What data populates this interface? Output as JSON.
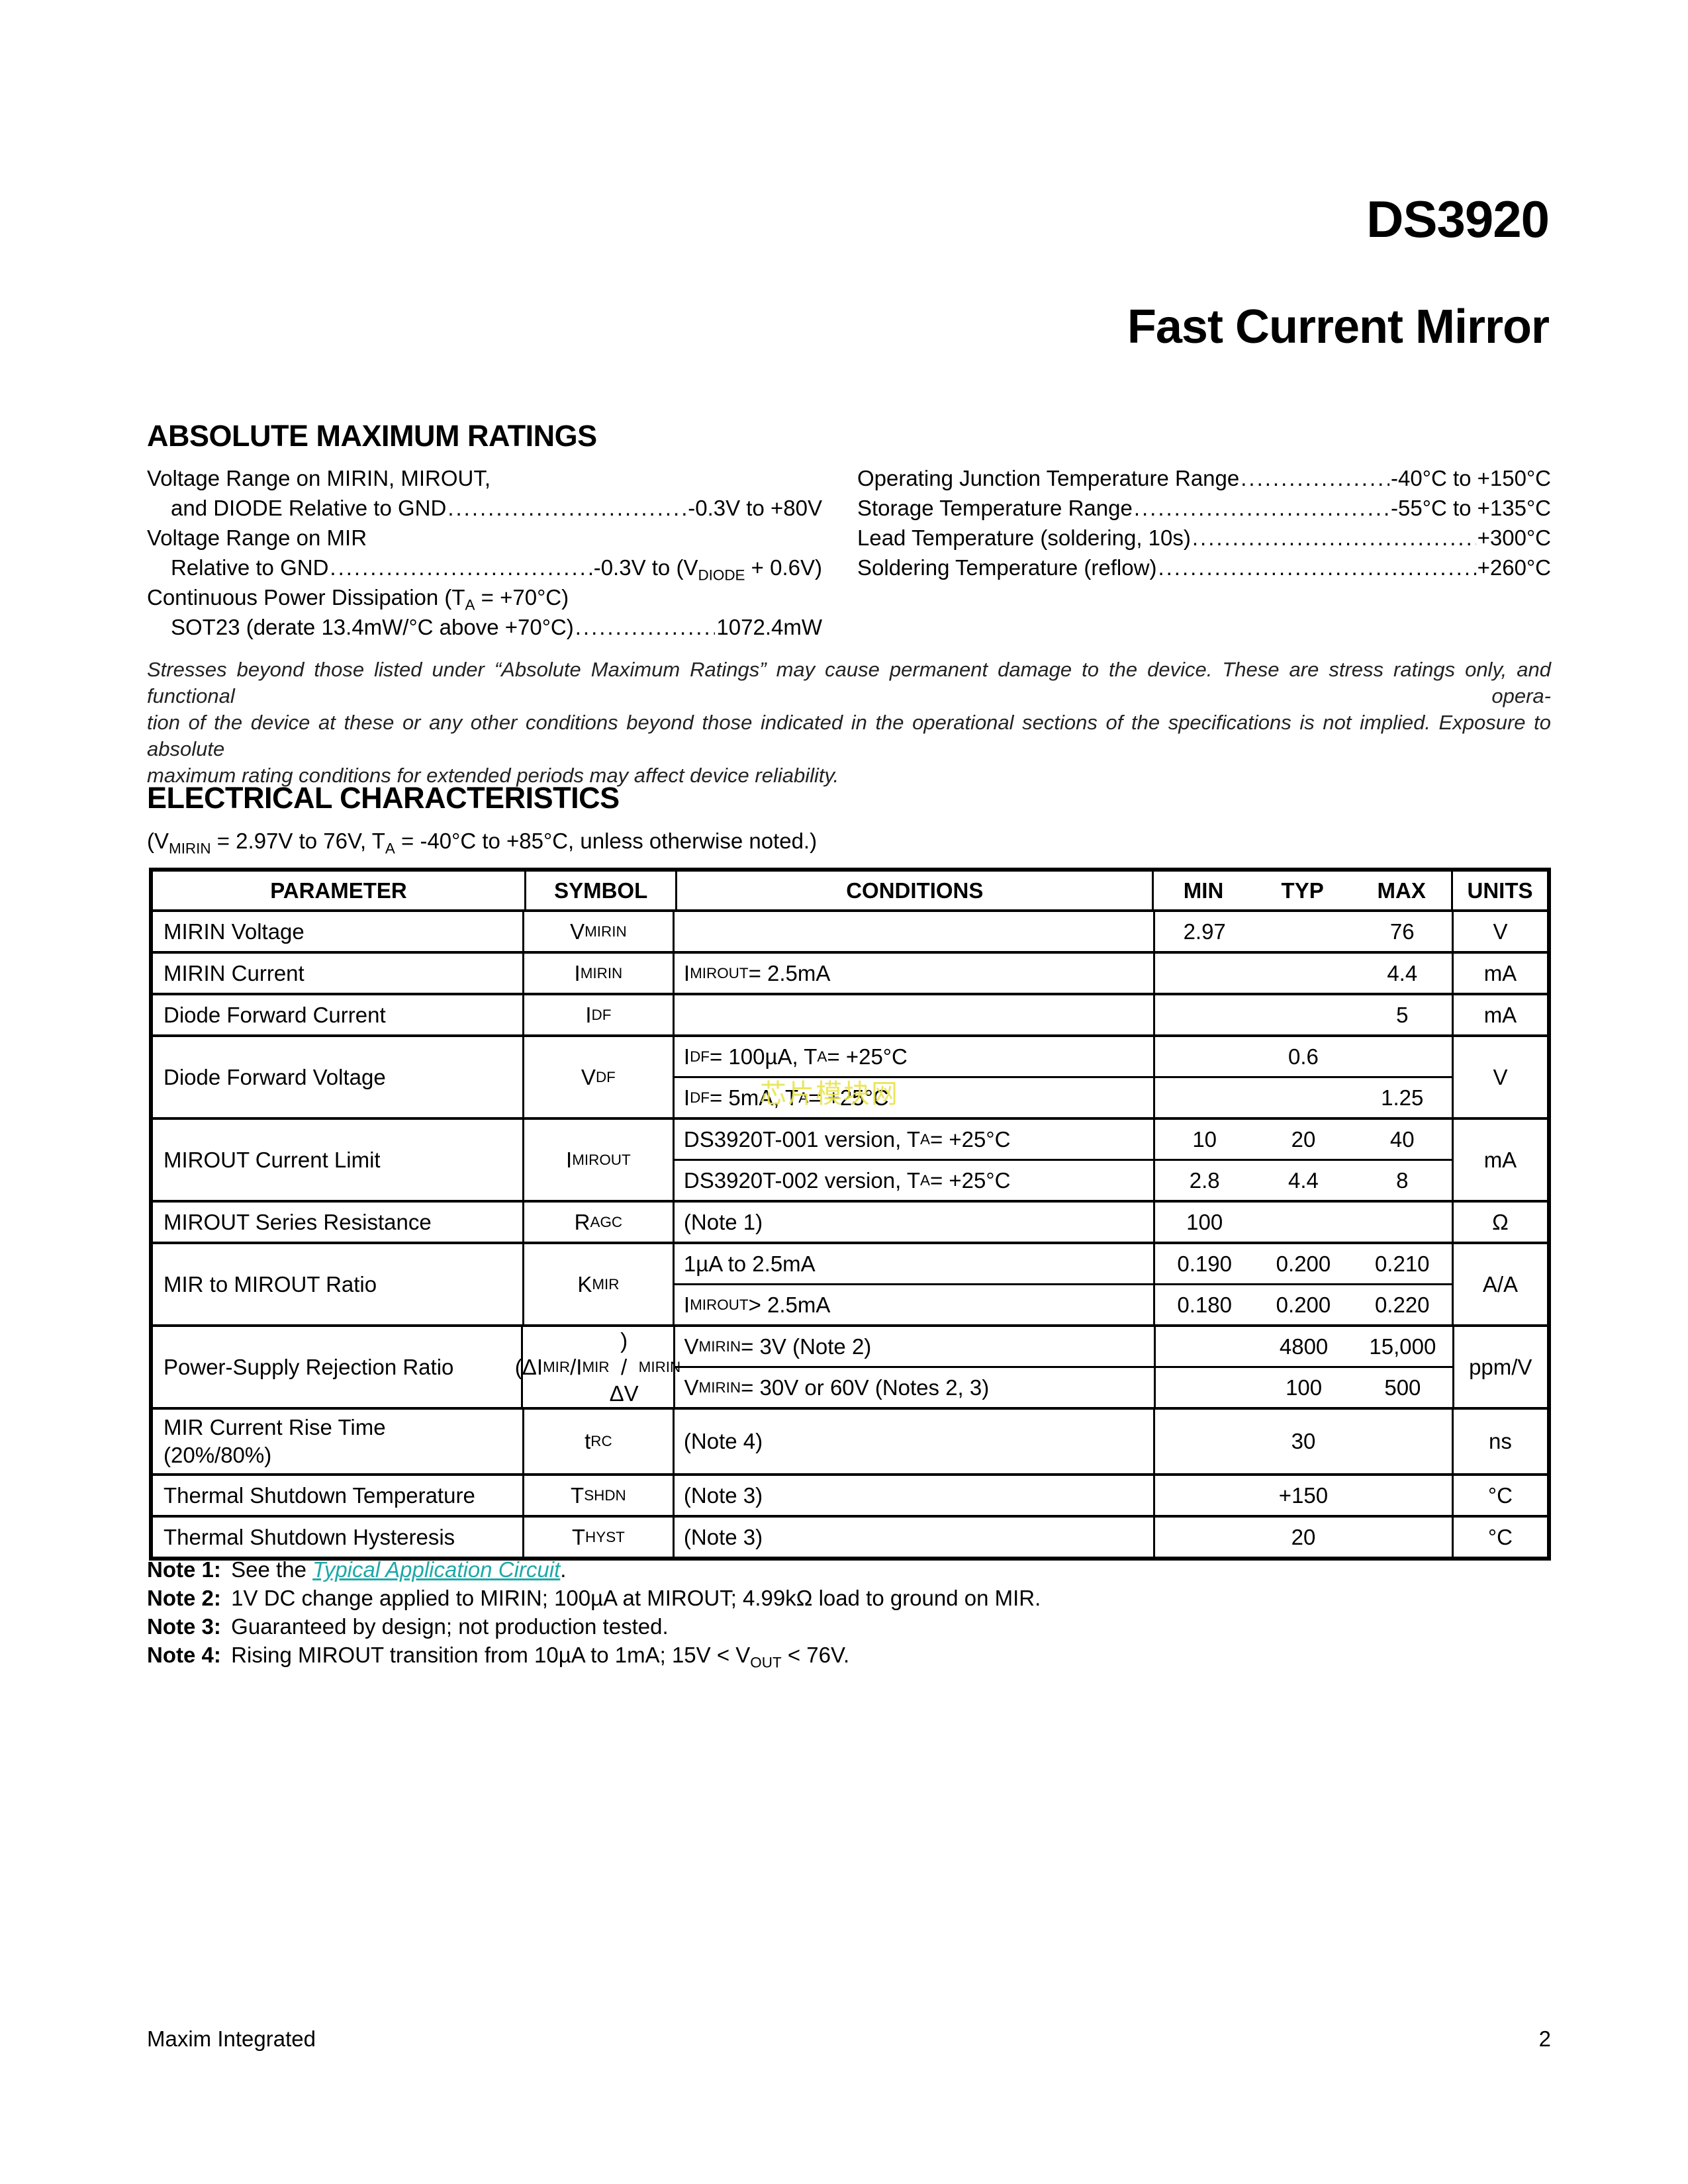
{
  "header": {
    "part_number": "DS3920",
    "title": "Fast Current Mirror"
  },
  "amr": {
    "heading": "ABSOLUTE MAXIMUM RATINGS",
    "leader_dots": "....................................................................................................................",
    "left": [
      {
        "label": "Voltage Range on MIRIN, MIROUT,",
        "indent": false,
        "leader": false,
        "value": ""
      },
      {
        "label": "and DIODE Relative to GND ",
        "indent": true,
        "leader": true,
        "value": "-0.3V to +80V"
      },
      {
        "label": "Voltage Range on MIR",
        "indent": false,
        "leader": false,
        "value": ""
      },
      {
        "label": "Relative to GND ",
        "indent": true,
        "leader": true,
        "value": "-0.3V to (V~DIODE~ + 0.6V)"
      },
      {
        "label": "Continuous Power Dissipation (T~A~ = +70°C)",
        "indent": false,
        "leader": false,
        "value": ""
      },
      {
        "label": "SOT23 (derate 13.4mW/°C above +70°C)",
        "indent": true,
        "leader": true,
        "value": "1072.4mW"
      }
    ],
    "right": [
      {
        "label": "Operating Junction Temperature Range ",
        "indent": false,
        "leader": true,
        "value": "-40°C to +150°C"
      },
      {
        "label": "Storage Temperature Range",
        "indent": false,
        "leader": true,
        "value": "-55°C to +135°C"
      },
      {
        "label": "Lead Temperature (soldering, 10s) ",
        "indent": false,
        "leader": true,
        "value": "+300°C"
      },
      {
        "label": "Soldering Temperature (reflow) ",
        "indent": false,
        "leader": true,
        "value": "+260°C"
      }
    ],
    "disclaimer_lines": [
      "Stresses beyond those listed under “Absolute Maximum Ratings” may cause permanent damage to the device. These are stress ratings only, and functional opera-",
      "tion of the device at these or any other conditions beyond those indicated in the operational sections of the specifications is not implied. Exposure to absolute",
      "maximum rating conditions for extended periods may affect device reliability."
    ]
  },
  "ec": {
    "heading": "ELECTRICAL CHARACTERISTICS",
    "conditions": "(V~MIRIN~ = 2.97V to 76V, T~A~ = -40°C to +85°C, unless otherwise noted.)"
  },
  "table": {
    "headers": {
      "parameter": "PARAMETER",
      "symbol": "SYMBOL",
      "conditions": "CONDITIONS",
      "min": "MIN",
      "typ": "TYP",
      "max": "MAX",
      "units": "UNITS"
    },
    "rows": [
      {
        "parameter": "MIRIN Voltage",
        "symbol": "V~MIRIN~",
        "units": "V",
        "subrows": [
          {
            "conditions": "",
            "min": "2.97",
            "typ": "",
            "max": "76"
          }
        ]
      },
      {
        "parameter": "MIRIN Current",
        "symbol": "I~MIRIN~",
        "units": "mA",
        "subrows": [
          {
            "conditions": "I~MIROUT~ = 2.5mA",
            "min": "",
            "typ": "",
            "max": "4.4"
          }
        ]
      },
      {
        "parameter": "Diode Forward Current",
        "symbol": "I~DF~",
        "units": "mA",
        "subrows": [
          {
            "conditions": "",
            "min": "",
            "typ": "",
            "max": "5"
          }
        ]
      },
      {
        "parameter": "Diode Forward Voltage",
        "symbol": "V~DF~",
        "units": "V",
        "subrows": [
          {
            "conditions": "I~DF~ = 100µA, T~A~ = +25°C",
            "min": "",
            "typ": "0.6",
            "max": ""
          },
          {
            "conditions": "I~DF~ = 5mA, T~A~ = +25°C",
            "min": "",
            "typ": "",
            "max": "1.25"
          }
        ]
      },
      {
        "parameter": "MIROUT Current Limit",
        "symbol": "I~MIROUT~",
        "units": "mA",
        "subrows": [
          {
            "conditions": "DS3920T-001 version, T~A~ = +25°C",
            "min": "10",
            "typ": "20",
            "max": "40"
          },
          {
            "conditions": "DS3920T-002 version, T~A~ = +25°C",
            "min": "2.8",
            "typ": "4.4",
            "max": "8"
          }
        ]
      },
      {
        "parameter": "MIROUT Series Resistance",
        "symbol": "R~AGC~",
        "units": "Ω",
        "subrows": [
          {
            "conditions": "(Note 1)",
            "min": "100",
            "typ": "",
            "max": ""
          }
        ]
      },
      {
        "parameter": "MIR to MIROUT Ratio",
        "symbol": "K~MIR~",
        "units": "A/A",
        "subrows": [
          {
            "conditions": "1µA to 2.5mA",
            "min": "0.190",
            "typ": "0.200",
            "max": "0.210"
          },
          {
            "conditions": "I~MIROUT~ > 2.5mA",
            "min": "0.180",
            "typ": "0.200",
            "max": "0.220"
          }
        ]
      },
      {
        "parameter": "Power-Supply Rejection Ratio",
        "symbol": "(ΔI~MIR~/I~MIR~)\n/ΔV~MIRIN~",
        "units": "ppm/V",
        "subrows": [
          {
            "conditions": "V~MIRIN~ = 3V (Note 2)",
            "min": "",
            "typ": "4800",
            "max": "15,000"
          },
          {
            "conditions": "V~MIRIN~ = 30V or 60V (Notes 2, 3)",
            "min": "",
            "typ": "100",
            "max": "500"
          }
        ]
      },
      {
        "parameter": "MIR Current Rise Time\n(20%/80%)",
        "symbol": "t~RC~",
        "units": "ns",
        "subrows": [
          {
            "conditions": "(Note 4)",
            "min": "",
            "typ": "30",
            "max": ""
          }
        ]
      },
      {
        "parameter": "Thermal Shutdown Temperature",
        "symbol": "T~SHDN~",
        "units": "°C",
        "subrows": [
          {
            "conditions": "(Note 3)",
            "min": "",
            "typ": "+150",
            "max": ""
          }
        ]
      },
      {
        "parameter": "Thermal Shutdown Hysteresis",
        "symbol": "T~HYST~",
        "units": "°C",
        "subrows": [
          {
            "conditions": "(Note 3)",
            "min": "",
            "typ": "20",
            "max": ""
          }
        ]
      }
    ]
  },
  "notes": [
    {
      "label": "Note 1:",
      "text": "See the ",
      "link": "Typical Application Circuit",
      "suffix": "."
    },
    {
      "label": "Note 2:",
      "text": "1V DC change applied to MIRIN; 100µA at MIROUT; 4.99kΩ load to ground on MIR."
    },
    {
      "label": "Note 3:",
      "text": "Guaranteed by design; not production tested."
    },
    {
      "label": "Note 4:",
      "text": "Rising MIROUT transition from 10µA to 1mA; 15V < V~OUT~ < 76V."
    }
  ],
  "watermark": "芯片模块网",
  "watermark_color": "#e8e44c",
  "link_color": "#1fa8a8",
  "footer": {
    "company": "Maxim Integrated",
    "page": "2"
  }
}
